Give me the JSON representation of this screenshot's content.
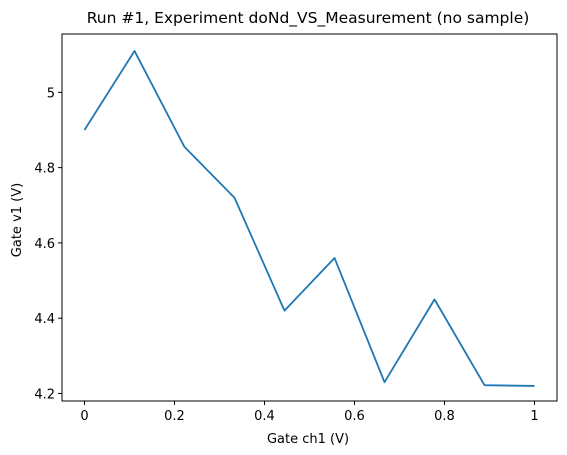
{
  "chart_data": {
    "type": "line",
    "title": "Run #1, Experiment doNd_VS_Measurement (no sample)",
    "xlabel": "Gate ch1 (V)",
    "ylabel": "Gate v1 (V)",
    "xlim": [
      -0.05,
      1.05
    ],
    "ylim": [
      4.18,
      5.155
    ],
    "grid": false,
    "x_ticks": [
      0,
      0.2,
      0.4,
      0.6,
      0.8,
      1
    ],
    "x_tick_labels": [
      "0",
      "0.2",
      "0.4",
      "0.6",
      "0.8",
      "1"
    ],
    "y_ticks": [
      4.2,
      4.4,
      4.6,
      4.8,
      5.0
    ],
    "y_tick_labels": [
      "4.2",
      "4.4",
      "4.6",
      "4.8",
      "5"
    ],
    "series": [
      {
        "color": "#1f77b4",
        "x": [
          0,
          0.1111,
          0.2222,
          0.3333,
          0.4444,
          0.5556,
          0.6667,
          0.7778,
          0.8889,
          1.0
        ],
        "y": [
          4.9,
          5.11,
          4.855,
          4.72,
          4.42,
          4.56,
          4.23,
          4.45,
          4.222,
          4.22
        ]
      }
    ]
  }
}
